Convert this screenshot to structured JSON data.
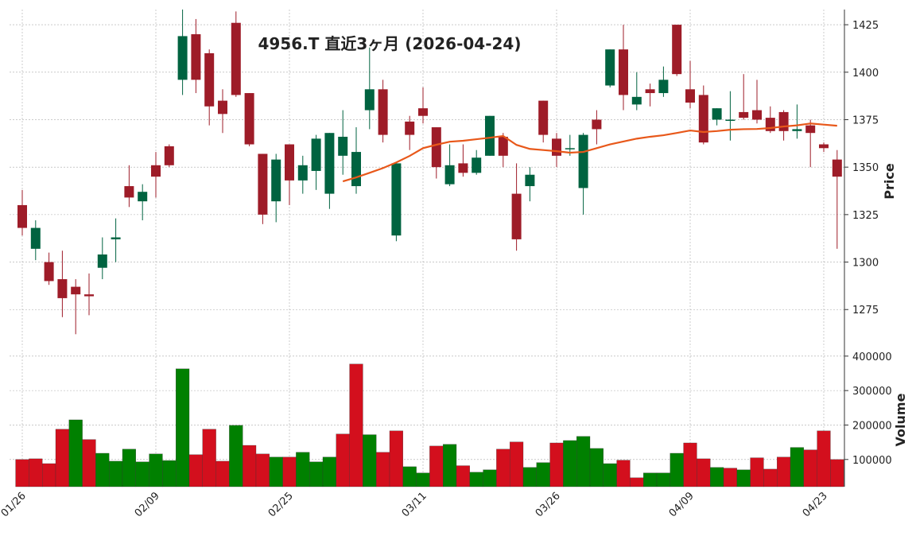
{
  "chart_data": {
    "type": "candlestick",
    "title": "4956.T 直近3ヶ月 (2026-04-24)",
    "categories": [
      "01/26",
      null,
      null,
      null,
      null,
      null,
      null,
      null,
      null,
      null,
      "02/09",
      null,
      null,
      null,
      null,
      null,
      null,
      null,
      null,
      null,
      "02/25",
      null,
      null,
      null,
      null,
      null,
      null,
      null,
      null,
      null,
      "03/11",
      null,
      null,
      null,
      null,
      null,
      null,
      null,
      null,
      null,
      "03/26",
      null,
      null,
      null,
      null,
      null,
      null,
      null,
      null,
      null,
      "04/09",
      null,
      null,
      null,
      null,
      null,
      null,
      null,
      null,
      null,
      "04/23",
      null
    ],
    "open": [
      1330,
      1307,
      1300,
      1291,
      1287,
      1283,
      1297,
      1312,
      1340,
      1332,
      1351,
      1361,
      1396,
      1420,
      1410,
      1385,
      1426,
      1389,
      1357,
      1332,
      1362,
      1343,
      1348,
      1336,
      1356,
      1340,
      1380,
      1391,
      1314,
      1374,
      1381,
      1371,
      1341,
      1352,
      1347,
      1356,
      1366,
      1336,
      1340,
      1385,
      1365,
      1360,
      1339,
      1375,
      1393,
      1412,
      1383,
      1391,
      1389,
      1425,
      1391,
      1388,
      1375,
      1375,
      1379,
      1380,
      1376,
      1379,
      1369,
      1372,
      1362,
      1354
    ],
    "high": [
      1338,
      1322,
      1305,
      1306,
      1291,
      1294,
      1313,
      1323,
      1351,
      1341,
      1358,
      1362,
      1433,
      1428,
      1412,
      1391,
      1432,
      1389,
      1357,
      1357,
      1362,
      1356,
      1367,
      1368,
      1380,
      1371,
      1413,
      1396,
      1352,
      1377,
      1392,
      1371,
      1362,
      1362,
      1359,
      1377,
      1368,
      1352,
      1350,
      1385,
      1368,
      1367,
      1368,
      1380,
      1412,
      1425,
      1400,
      1394,
      1403,
      1425,
      1406,
      1393,
      1381,
      1390,
      1399,
      1396,
      1382,
      1380,
      1383,
      1375,
      1363,
      1359
    ],
    "low": [
      1314,
      1301,
      1288,
      1271,
      1262,
      1272,
      1291,
      1300,
      1329,
      1322,
      1334,
      1350,
      1388,
      1389,
      1372,
      1368,
      1387,
      1361,
      1320,
      1321,
      1330,
      1336,
      1338,
      1328,
      1346,
      1336,
      1370,
      1363,
      1311,
      1359,
      1373,
      1344,
      1340,
      1345,
      1346,
      1356,
      1350,
      1306,
      1332,
      1363,
      1350,
      1356,
      1325,
      1362,
      1392,
      1380,
      1380,
      1382,
      1387,
      1398,
      1381,
      1362,
      1372,
      1364,
      1375,
      1373,
      1368,
      1364,
      1365,
      1350,
      1358,
      1307
    ],
    "close": [
      1318,
      1318,
      1290,
      1281,
      1283,
      1282,
      1304,
      1313,
      1334,
      1337,
      1345,
      1351,
      1419,
      1396,
      1382,
      1378,
      1388,
      1362,
      1325,
      1354,
      1343,
      1351,
      1365,
      1368,
      1366,
      1358,
      1391,
      1367,
      1352,
      1367,
      1377,
      1350,
      1351,
      1347,
      1355,
      1377,
      1356,
      1312,
      1346,
      1367,
      1356,
      1360,
      1367,
      1370,
      1412,
      1388,
      1387,
      1389,
      1396,
      1399,
      1384,
      1363,
      1381,
      1375,
      1376,
      1375,
      1369,
      1369,
      1370,
      1368,
      1360,
      1345
    ],
    "up_color": "#006340",
    "down_color": "#9e1c28",
    "ma": {
      "color": "#e8581a",
      "values": [
        null,
        null,
        null,
        null,
        null,
        null,
        null,
        null,
        null,
        null,
        null,
        null,
        null,
        null,
        null,
        null,
        null,
        null,
        null,
        null,
        null,
        null,
        null,
        null,
        1342.5,
        1344.6,
        1347,
        1349.5,
        1352.5,
        1355.9,
        1360,
        1361.8,
        1363.4,
        1363.9,
        1364.7,
        1365.5,
        1366.4,
        1361.7,
        1359.6,
        1359,
        1358.4,
        1357.6,
        1358,
        1360,
        1362,
        1363.5,
        1365,
        1366,
        1366.8,
        1368,
        1369.3,
        1368.5,
        1369,
        1369.7,
        1370,
        1370.1,
        1370.6,
        1371.4,
        1372,
        1373,
        1372.4,
        1371.8
      ]
    },
    "ylabel": "Price",
    "ylim": [
      1255,
      1433
    ],
    "yticks": [
      1275,
      1300,
      1325,
      1350,
      1375,
      1400,
      1425
    ],
    "grid": true,
    "volume": {
      "ylabel": "Volume",
      "up_color": "#008000",
      "down_color": "#d30f1d",
      "ylim": [
        21000,
        418000
      ],
      "yticks": [
        100000,
        200000,
        300000,
        400000
      ],
      "values": [
        100000,
        102000,
        88000,
        188000,
        215000,
        158000,
        118000,
        95000,
        130000,
        93000,
        116000,
        97000,
        363000,
        114000,
        188000,
        95000,
        199000,
        141000,
        116000,
        107000,
        107000,
        121000,
        93000,
        107000,
        174000,
        377000,
        172000,
        121000,
        183000,
        79000,
        61000,
        139000,
        144000,
        82000,
        63000,
        70000,
        130000,
        151000,
        77000,
        91000,
        148000,
        155000,
        167000,
        132000,
        88000,
        98000,
        47000,
        61000,
        61000,
        118000,
        148000,
        102000,
        77000,
        75000,
        70000,
        105000,
        72000,
        107000,
        135000,
        128000,
        183000,
        100000
      ]
    }
  }
}
